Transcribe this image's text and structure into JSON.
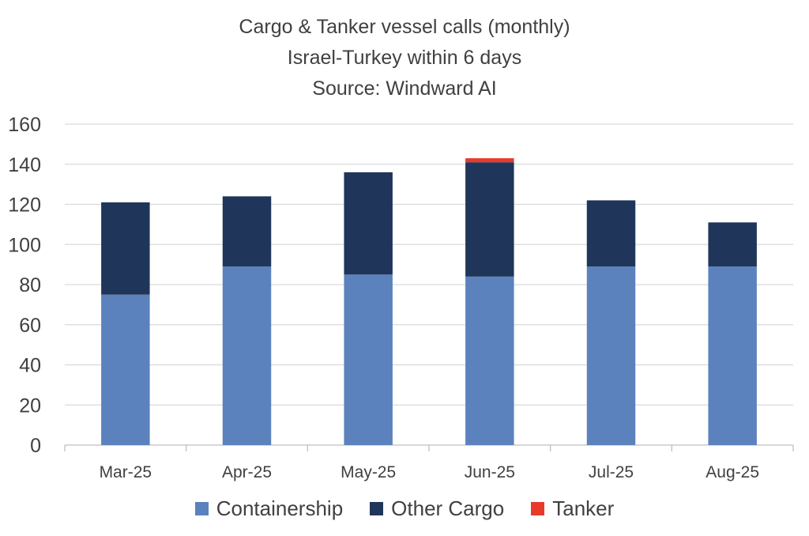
{
  "chart_data": {
    "type": "bar",
    "stacked": true,
    "title": [
      "Cargo & Tanker vessel calls (monthly)",
      "Israel-Turkey within 6 days",
      "Source: Windward AI"
    ],
    "categories": [
      "Mar-25",
      "Apr-25",
      "May-25",
      "Jun-25",
      "Jul-25",
      "Aug-25"
    ],
    "series": [
      {
        "name": "Containership",
        "color": "#5b82bd",
        "values": [
          75,
          89,
          85,
          84,
          89,
          89
        ]
      },
      {
        "name": "Other Cargo",
        "color": "#1f365a",
        "values": [
          46,
          35,
          51,
          57,
          33,
          22
        ]
      },
      {
        "name": "Tanker",
        "color": "#e8392b",
        "values": [
          0,
          0,
          0,
          2,
          0,
          0
        ]
      }
    ],
    "ylim": [
      0,
      160
    ],
    "yticks": [
      0,
      20,
      40,
      60,
      80,
      100,
      120,
      140,
      160
    ],
    "grid": true,
    "legend_position": "bottom"
  }
}
